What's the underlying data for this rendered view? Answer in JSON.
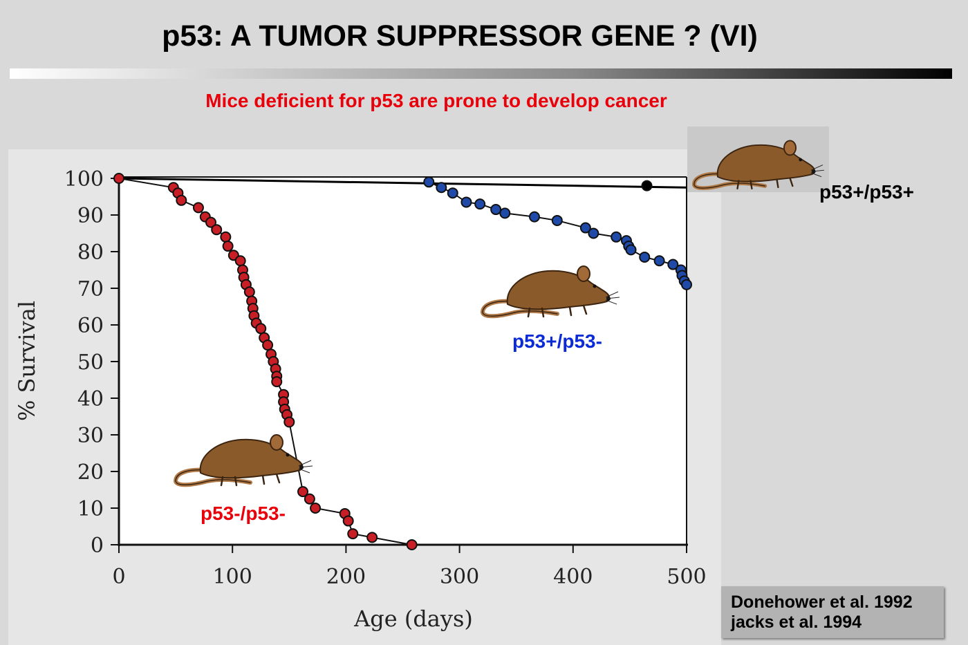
{
  "title": "p53:  A TUMOR SUPPRESSOR GENE ? (VI)",
  "subtitle": "Mice deficient for p53 are prone to develop cancer",
  "references": [
    "Donehower et al. 1992",
    "jacks  et al. 1994"
  ],
  "colors": {
    "title": "#000000",
    "subtitle": "#e8000b",
    "null_series": "#c81e25",
    "het_series": "#1f4aa8",
    "wt_series": "#000000",
    "mouse_body": "#8b5a2b",
    "mouse_outline": "#3b2410"
  },
  "icons": [
    "mouse-icon",
    "mouse-icon",
    "mouse-icon"
  ],
  "chart_data": {
    "type": "line",
    "title": "",
    "xlabel": "Age (days)",
    "ylabel": "% Survival",
    "xlim": [
      0,
      500
    ],
    "ylim": [
      0,
      100
    ],
    "xticks": [
      "0",
      "100",
      "200",
      "300",
      "400",
      "500"
    ],
    "yticks": [
      "0",
      "10",
      "20",
      "30",
      "40",
      "50",
      "60",
      "70",
      "80",
      "90",
      "100"
    ],
    "series": [
      {
        "name": "p53+/p53+",
        "label": "p53+/p53+",
        "color": "#000000",
        "line": [
          [
            0,
            100
          ],
          [
            500,
            97.5
          ]
        ],
        "points": [
          [
            465,
            98
          ]
        ]
      },
      {
        "name": "p53+/p53-",
        "label": "p53+/p53-",
        "color": "#1f4aa8",
        "points": [
          [
            273,
            99
          ],
          [
            284,
            97.5
          ],
          [
            294,
            96
          ],
          [
            306,
            93.5
          ],
          [
            318,
            93
          ],
          [
            332,
            91.5
          ],
          [
            340,
            90.5
          ],
          [
            366,
            89.5
          ],
          [
            386,
            88.5
          ],
          [
            411,
            86.5
          ],
          [
            418,
            85
          ],
          [
            438,
            84
          ],
          [
            447,
            83
          ],
          [
            449,
            81.5
          ],
          [
            451,
            80.5
          ],
          [
            463,
            78.5
          ],
          [
            476,
            77.5
          ],
          [
            488,
            76.5
          ],
          [
            495,
            75
          ],
          [
            496,
            73.5
          ],
          [
            498,
            72
          ],
          [
            500,
            71
          ]
        ]
      },
      {
        "name": "p53-/p53-",
        "label": "p53-/p53-",
        "color": "#c81e25",
        "points": [
          [
            0,
            100
          ],
          [
            48,
            97.5
          ],
          [
            52,
            96
          ],
          [
            55,
            94
          ],
          [
            70,
            92
          ],
          [
            76,
            89.5
          ],
          [
            81,
            88
          ],
          [
            86,
            86
          ],
          [
            94,
            84
          ],
          [
            96,
            81.5
          ],
          [
            101,
            79
          ],
          [
            107,
            77.5
          ],
          [
            109,
            75
          ],
          [
            110,
            73
          ],
          [
            112,
            71
          ],
          [
            115,
            69
          ],
          [
            117,
            66.5
          ],
          [
            118,
            64.5
          ],
          [
            119,
            62.5
          ],
          [
            121,
            60.5
          ],
          [
            125,
            59
          ],
          [
            128,
            56.5
          ],
          [
            131,
            54.5
          ],
          [
            134,
            52
          ],
          [
            136,
            50
          ],
          [
            138,
            48
          ],
          [
            139,
            46
          ],
          [
            139,
            44.5
          ],
          [
            145,
            41
          ],
          [
            145,
            39
          ],
          [
            146,
            37
          ],
          [
            148,
            35.5
          ],
          [
            150,
            33.5
          ],
          [
            162,
            14.5
          ],
          [
            168,
            12.5
          ],
          [
            173,
            10
          ],
          [
            199,
            8.5
          ],
          [
            202,
            6.5
          ],
          [
            206,
            3
          ],
          [
            223,
            2
          ],
          [
            258,
            0
          ]
        ]
      }
    ],
    "legend_position": "inline labels"
  }
}
